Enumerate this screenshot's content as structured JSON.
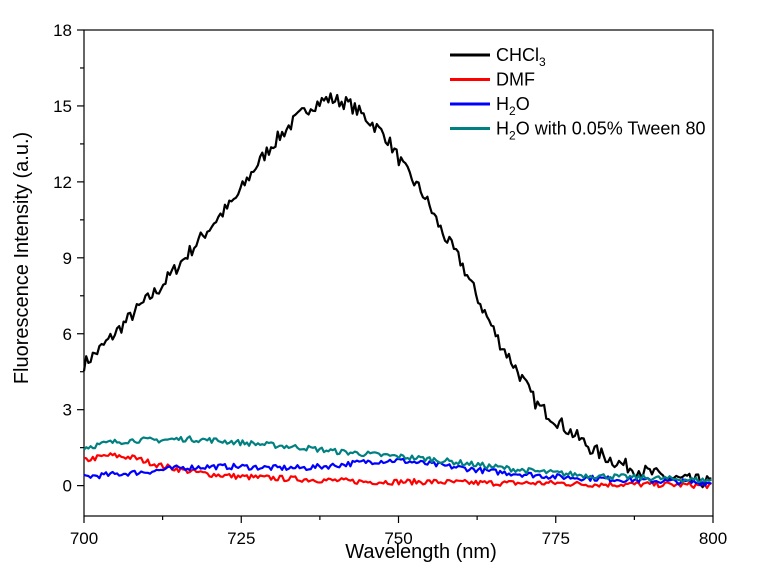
{
  "chart_data": {
    "type": "line",
    "title": "",
    "xlabel": "Wavelength (nm)",
    "ylabel": "Fluorescence Intensity (a.u.)",
    "xlim": [
      700,
      800
    ],
    "ylim": [
      -1.2,
      18
    ],
    "xticks": [
      700,
      725,
      750,
      775,
      800
    ],
    "yticks": [
      0,
      3,
      6,
      9,
      12,
      15,
      18
    ],
    "grid": false,
    "legend_position": "top-right",
    "series": [
      {
        "name": "CHCl",
        "name_subscript": "3",
        "color": "#000000",
        "x": [
          700,
          703,
          706,
          709,
          712,
          715,
          718,
          721,
          724,
          727,
          730,
          733,
          736,
          739,
          742,
          745,
          748,
          751,
          754,
          757,
          760,
          763,
          766,
          769,
          772,
          775,
          778,
          781,
          784,
          787,
          790,
          793,
          796,
          800
        ],
        "y": [
          4.8,
          5.5,
          6.3,
          7.1,
          7.8,
          8.7,
          9.6,
          10.5,
          11.3,
          12.5,
          13.5,
          14.3,
          15.0,
          15.3,
          15.1,
          14.5,
          13.8,
          12.5,
          11.5,
          10.0,
          8.8,
          7.2,
          5.7,
          4.5,
          3.2,
          2.6,
          2.0,
          1.4,
          1.0,
          0.7,
          0.5,
          0.3,
          0.2,
          0.15
        ]
      },
      {
        "name": "DMF",
        "color": "#ff0000",
        "x": [
          700,
          704,
          708,
          712,
          716,
          720,
          725,
          730,
          735,
          740,
          745,
          750,
          755,
          760,
          765,
          770,
          775,
          780,
          785,
          790,
          795,
          800
        ],
        "y": [
          1.0,
          1.2,
          1.1,
          0.8,
          0.6,
          0.45,
          0.35,
          0.3,
          0.25,
          0.2,
          0.15,
          0.15,
          0.15,
          0.12,
          0.1,
          0.1,
          0.1,
          0.05,
          0.05,
          0.05,
          0.03,
          0.0
        ]
      },
      {
        "name": "H",
        "name_subscript": "2",
        "name_suffix": "O",
        "color": "#0000ff",
        "x": [
          700,
          705,
          710,
          715,
          720,
          725,
          730,
          735,
          740,
          745,
          750,
          755,
          760,
          765,
          770,
          775,
          780,
          785,
          790,
          795,
          800
        ],
        "y": [
          0.35,
          0.45,
          0.55,
          0.7,
          0.75,
          0.75,
          0.7,
          0.7,
          0.8,
          0.95,
          1.0,
          0.85,
          0.7,
          0.55,
          0.45,
          0.35,
          0.3,
          0.25,
          0.2,
          0.15,
          0.1
        ]
      },
      {
        "name": "H",
        "name_subscript": "2",
        "name_suffix": "O with 0.05% Tween 80",
        "color": "#008080",
        "x": [
          700,
          704,
          708,
          712,
          716,
          720,
          725,
          730,
          735,
          740,
          745,
          750,
          755,
          760,
          765,
          770,
          775,
          780,
          785,
          790,
          795,
          800
        ],
        "y": [
          1.5,
          1.7,
          1.8,
          1.8,
          1.85,
          1.8,
          1.7,
          1.6,
          1.5,
          1.35,
          1.25,
          1.15,
          1.05,
          0.9,
          0.75,
          0.6,
          0.5,
          0.4,
          0.35,
          0.3,
          0.25,
          0.2
        ]
      }
    ]
  }
}
